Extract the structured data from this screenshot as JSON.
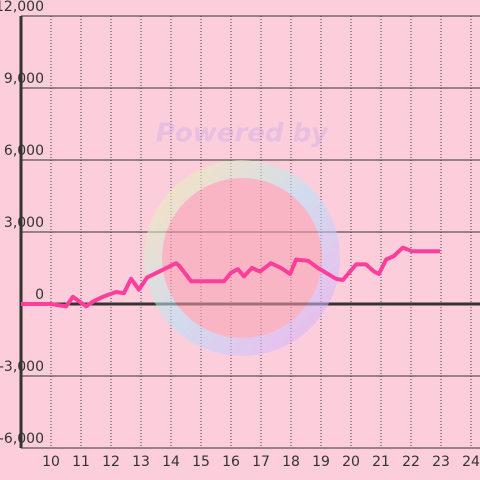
{
  "chart_data": {
    "type": "line",
    "watermark": "Powered by",
    "x": [
      9,
      10,
      10.5,
      10.73,
      11.17,
      11.4,
      11.73,
      12.17,
      12.43,
      12.67,
      12.93,
      13.2,
      14.17,
      14.27,
      14.67,
      15.77,
      16,
      16.23,
      16.43,
      16.7,
      16.97,
      17.33,
      17.67,
      17.97,
      18.17,
      18.57,
      18.9,
      19.5,
      19.73,
      20.17,
      20.5,
      20.77,
      20.93,
      21.17,
      21.43,
      21.73,
      22.03,
      22.97
    ],
    "series": [
      {
        "color": "#ff3d9a",
        "values": [
          0,
          0,
          -100,
          300,
          -100,
          100,
          300,
          500,
          450,
          1050,
          600,
          1100,
          1700,
          1600,
          950,
          950,
          1300,
          1450,
          1150,
          1500,
          1350,
          1700,
          1500,
          1250,
          1850,
          1800,
          1500,
          1050,
          1000,
          1650,
          1650,
          1350,
          1250,
          1850,
          2000,
          2350,
          2200,
          2200
        ]
      }
    ],
    "xlim": [
      9,
      24.3
    ],
    "xticks": [
      10,
      11,
      12,
      13,
      14,
      15,
      16,
      17,
      18,
      19,
      20,
      21,
      22,
      23,
      24
    ],
    "ylim": [
      -6000,
      12000
    ],
    "yticks": [
      {
        "value": -6000,
        "label": "-6,000"
      },
      {
        "value": -3000,
        "label": "-3,000"
      },
      0,
      {
        "value": 3000,
        "label": "3,000"
      },
      {
        "value": 6000,
        "label": "6,000"
      },
      {
        "value": 9000,
        "label": "9,000"
      },
      {
        "value": 12000,
        "label": "12,000"
      }
    ],
    "grid": true
  }
}
